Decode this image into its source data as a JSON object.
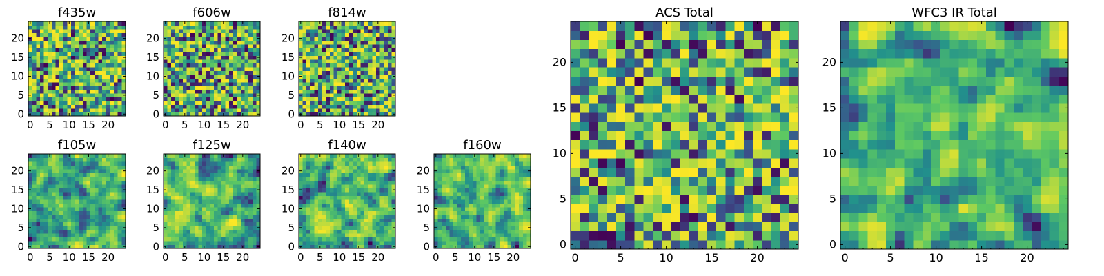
{
  "chart_data": [
    {
      "type": "heatmap",
      "title": "f435w",
      "grid": [
        25,
        25
      ],
      "xlim": [
        -0.5,
        24.5
      ],
      "ylim": [
        -0.5,
        24.5
      ],
      "xticks": [
        0,
        5,
        10,
        15,
        20
      ],
      "yticks": [
        0,
        5,
        10,
        15,
        20
      ],
      "colormap": "viridis",
      "texture": "noise",
      "seed": 11
    },
    {
      "type": "heatmap",
      "title": "f606w",
      "grid": [
        25,
        25
      ],
      "xlim": [
        -0.5,
        24.5
      ],
      "ylim": [
        -0.5,
        24.5
      ],
      "xticks": [
        0,
        5,
        10,
        15,
        20
      ],
      "yticks": [
        0,
        5,
        10,
        15,
        20
      ],
      "colormap": "viridis",
      "texture": "noise",
      "seed": 23
    },
    {
      "type": "heatmap",
      "title": "f814w",
      "grid": [
        25,
        25
      ],
      "xlim": [
        -0.5,
        24.5
      ],
      "ylim": [
        -0.5,
        24.5
      ],
      "xticks": [
        0,
        5,
        10,
        15,
        20
      ],
      "yticks": [
        0,
        5,
        10,
        15,
        20
      ],
      "colormap": "viridis",
      "texture": "noise",
      "seed": 37
    },
    {
      "type": "heatmap",
      "title": "f105w",
      "grid": [
        25,
        25
      ],
      "xlim": [
        -0.5,
        24.5
      ],
      "ylim": [
        -0.5,
        24.5
      ],
      "xticks": [
        0,
        5,
        10,
        15,
        20
      ],
      "yticks": [
        0,
        5,
        10,
        15,
        20
      ],
      "colormap": "viridis",
      "texture": "smooth",
      "seed": 41
    },
    {
      "type": "heatmap",
      "title": "f125w",
      "grid": [
        25,
        25
      ],
      "xlim": [
        -0.5,
        24.5
      ],
      "ylim": [
        -0.5,
        24.5
      ],
      "xticks": [
        0,
        5,
        10,
        15,
        20
      ],
      "yticks": [
        0,
        5,
        10,
        15,
        20
      ],
      "colormap": "viridis",
      "texture": "smooth",
      "seed": 53
    },
    {
      "type": "heatmap",
      "title": "f140w",
      "grid": [
        25,
        25
      ],
      "xlim": [
        -0.5,
        24.5
      ],
      "ylim": [
        -0.5,
        24.5
      ],
      "xticks": [
        0,
        5,
        10,
        15,
        20
      ],
      "yticks": [
        0,
        5,
        10,
        15,
        20
      ],
      "colormap": "viridis",
      "texture": "smooth",
      "seed": 67
    },
    {
      "type": "heatmap",
      "title": "f160w",
      "grid": [
        25,
        25
      ],
      "xlim": [
        -0.5,
        24.5
      ],
      "ylim": [
        -0.5,
        24.5
      ],
      "xticks": [
        0,
        5,
        10,
        15,
        20
      ],
      "yticks": [
        0,
        5,
        10,
        15,
        20
      ],
      "colormap": "viridis",
      "texture": "smooth",
      "seed": 79
    },
    {
      "type": "heatmap",
      "title": "ACS Total",
      "grid": [
        25,
        25
      ],
      "xlim": [
        -0.5,
        24.5
      ],
      "ylim": [
        -0.5,
        24.5
      ],
      "xticks": [
        0,
        5,
        10,
        15,
        20
      ],
      "yticks": [
        0,
        5,
        10,
        15,
        20
      ],
      "colormap": "viridis",
      "texture": "noise",
      "seed": 97
    },
    {
      "type": "heatmap",
      "title": "WFC3 IR Total",
      "grid": [
        25,
        25
      ],
      "xlim": [
        -0.5,
        24.5
      ],
      "ylim": [
        -0.5,
        24.5
      ],
      "xticks": [
        0,
        5,
        10,
        15,
        20
      ],
      "yticks": [
        0,
        5,
        10,
        15,
        20
      ],
      "colormap": "viridis",
      "texture": "smooth",
      "seed": 113
    }
  ],
  "colors": {
    "viridis": [
      "#440154",
      "#3b528b",
      "#21918c",
      "#5ec962",
      "#fde725"
    ]
  }
}
